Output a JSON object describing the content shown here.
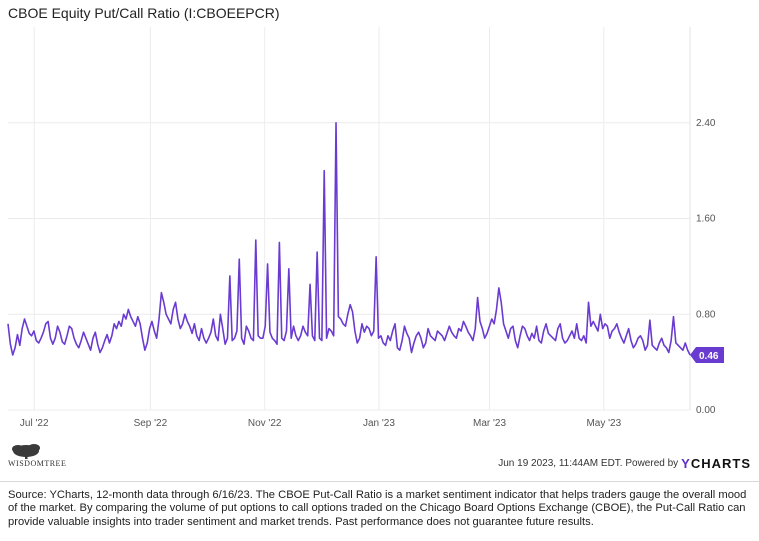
{
  "chart_data": {
    "type": "line",
    "title": "CBOE Equity Put/Call Ratio (I:CBOEEPCR)",
    "x_start": "2022-06-17",
    "x_end": "2023-06-16",
    "x_tick_labels": [
      "Jul '22",
      "Sep '22",
      "Nov '22",
      "Jan '23",
      "Mar '23",
      "May '23"
    ],
    "x_tick_dates": [
      "2022-07-01",
      "2022-09-01",
      "2022-11-01",
      "2023-01-01",
      "2023-03-01",
      "2023-05-01"
    ],
    "y_tick_labels": [
      "0.00",
      "0.80",
      "1.60",
      "2.40"
    ],
    "y_tick_values": [
      0,
      0.8,
      1.6,
      2.4
    ],
    "ylim": [
      0,
      3.2
    ],
    "grid": true,
    "series": [
      {
        "color": "#6a3bd1",
        "values": [
          0.72,
          0.55,
          0.46,
          0.52,
          0.63,
          0.54,
          0.68,
          0.76,
          0.7,
          0.64,
          0.62,
          0.66,
          0.58,
          0.56,
          0.6,
          0.65,
          0.72,
          0.74,
          0.6,
          0.55,
          0.6,
          0.7,
          0.65,
          0.57,
          0.55,
          0.62,
          0.7,
          0.68,
          0.6,
          0.55,
          0.52,
          0.58,
          0.65,
          0.6,
          0.55,
          0.5,
          0.6,
          0.65,
          0.55,
          0.48,
          0.52,
          0.58,
          0.63,
          0.56,
          0.62,
          0.72,
          0.68,
          0.74,
          0.7,
          0.8,
          0.76,
          0.84,
          0.78,
          0.74,
          0.7,
          0.78,
          0.72,
          0.6,
          0.5,
          0.56,
          0.68,
          0.74,
          0.66,
          0.6,
          0.76,
          0.98,
          0.9,
          0.8,
          0.76,
          0.72,
          0.84,
          0.9,
          0.76,
          0.68,
          0.72,
          0.8,
          0.74,
          0.7,
          0.64,
          0.72,
          0.62,
          0.58,
          0.68,
          0.6,
          0.56,
          0.6,
          0.65,
          0.76,
          0.62,
          0.58,
          0.8,
          0.68,
          0.55,
          0.6,
          1.12,
          0.58,
          0.6,
          0.66,
          1.26,
          0.6,
          0.55,
          0.7,
          0.66,
          0.6,
          0.58,
          1.42,
          0.62,
          0.6,
          0.6,
          0.7,
          1.22,
          0.65,
          0.6,
          0.58,
          0.55,
          1.4,
          0.6,
          0.58,
          0.66,
          1.18,
          0.6,
          0.7,
          0.62,
          0.58,
          0.62,
          0.7,
          0.65,
          0.62,
          1.05,
          0.62,
          0.58,
          1.32,
          0.6,
          0.58,
          2.0,
          0.6,
          0.68,
          0.66,
          0.62,
          2.4,
          0.78,
          0.76,
          0.72,
          0.7,
          0.8,
          0.88,
          0.82,
          0.66,
          0.56,
          0.6,
          0.72,
          0.65,
          0.7,
          0.68,
          0.62,
          0.66,
          1.28,
          0.6,
          0.62,
          0.56,
          0.54,
          0.62,
          0.58,
          0.66,
          0.72,
          0.52,
          0.5,
          0.58,
          0.7,
          0.64,
          0.6,
          0.48,
          0.56,
          0.62,
          0.65,
          0.6,
          0.52,
          0.56,
          0.68,
          0.62,
          0.6,
          0.58,
          0.66,
          0.64,
          0.62,
          0.58,
          0.64,
          0.7,
          0.65,
          0.62,
          0.6,
          0.68,
          0.66,
          0.74,
          0.7,
          0.65,
          0.62,
          0.58,
          0.68,
          0.94,
          0.74,
          0.68,
          0.6,
          0.64,
          0.7,
          0.76,
          0.72,
          0.84,
          1.02,
          0.9,
          0.72,
          0.66,
          0.6,
          0.68,
          0.7,
          0.58,
          0.52,
          0.62,
          0.7,
          0.68,
          0.62,
          0.58,
          0.64,
          0.6,
          0.7,
          0.58,
          0.56,
          0.66,
          0.72,
          0.64,
          0.62,
          0.6,
          0.58,
          0.68,
          0.72,
          0.6,
          0.56,
          0.58,
          0.62,
          0.66,
          0.6,
          0.72,
          0.6,
          0.58,
          0.62,
          0.56,
          0.9,
          0.7,
          0.74,
          0.7,
          0.66,
          0.8,
          0.68,
          0.72,
          0.7,
          0.6,
          0.66,
          0.68,
          0.72,
          0.65,
          0.6,
          0.56,
          0.62,
          0.68,
          0.58,
          0.52,
          0.55,
          0.6,
          0.62,
          0.58,
          0.5,
          0.54,
          0.75,
          0.54,
          0.52,
          0.5,
          0.56,
          0.6,
          0.54,
          0.52,
          0.48,
          0.58,
          0.78,
          0.56,
          0.54,
          0.52,
          0.5,
          0.56,
          0.5,
          0.46
        ]
      }
    ],
    "last_value_label": "0.46"
  },
  "footer": {
    "logo_text": "WISDOMTREE",
    "timestamp": "Jun 19 2023, 11:44AM EDT. Powered by",
    "brand_y": "Y",
    "brand_rest": "CHARTS"
  },
  "source_note": "Source: YCharts, 12-month data through 6/16/23. The CBOE Put-Call Ratio is a market sentiment indicator that helps traders gauge the overall mood of the market. By comparing the volume of put options to call options traded on the Chicago Board Options Exchange (CBOE), the Put-Call Ratio can provide valuable insights into trader sentiment and market trends. Past performance does not guarantee future results."
}
